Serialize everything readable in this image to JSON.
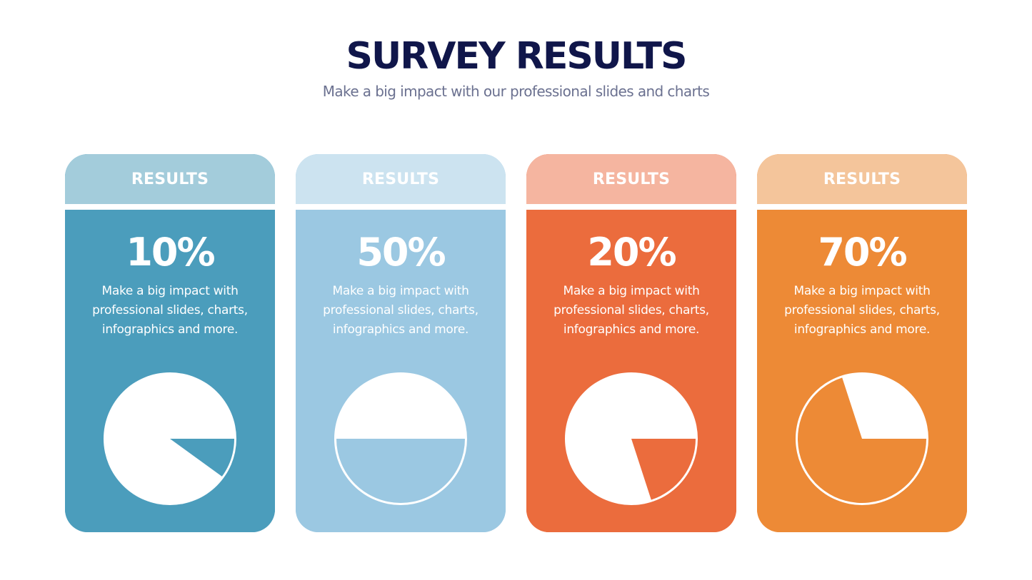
{
  "title": "SURVEY RESULTS",
  "subtitle": "Make a big impact with our professional slides and charts",
  "colors": {
    "title": "#10164a",
    "subtitle": "#6b7190"
  },
  "cards": [
    {
      "header": "RESULTS",
      "percent_label": "10%",
      "description": "Make a big impact with professional slides, charts, infographics and more.",
      "header_color": "#a3ccdb",
      "body_color": "#4b9dbc"
    },
    {
      "header": "RESULTS",
      "percent_label": "50%",
      "description": "Make a big impact with professional slides, charts, infographics and more.",
      "header_color": "#cce3f0",
      "body_color": "#9bc8e2"
    },
    {
      "header": "RESULTS",
      "percent_label": "20%",
      "description": "Make a big impact with professional slides, charts, infographics and more.",
      "header_color": "#f5b5a0",
      "body_color": "#eb6c3d"
    },
    {
      "header": "RESULTS",
      "percent_label": "70%",
      "description": "Make a big impact with professional slides, charts, infographics and more.",
      "header_color": "#f4c59b",
      "body_color": "#ed8a36"
    }
  ],
  "chart_data": [
    {
      "type": "pie",
      "values": [
        10,
        90
      ],
      "highlight_percent": 10
    },
    {
      "type": "pie",
      "values": [
        50,
        50
      ],
      "highlight_percent": 50
    },
    {
      "type": "pie",
      "values": [
        20,
        80
      ],
      "highlight_percent": 20
    },
    {
      "type": "pie",
      "values": [
        70,
        30
      ],
      "highlight_percent": 70
    }
  ]
}
